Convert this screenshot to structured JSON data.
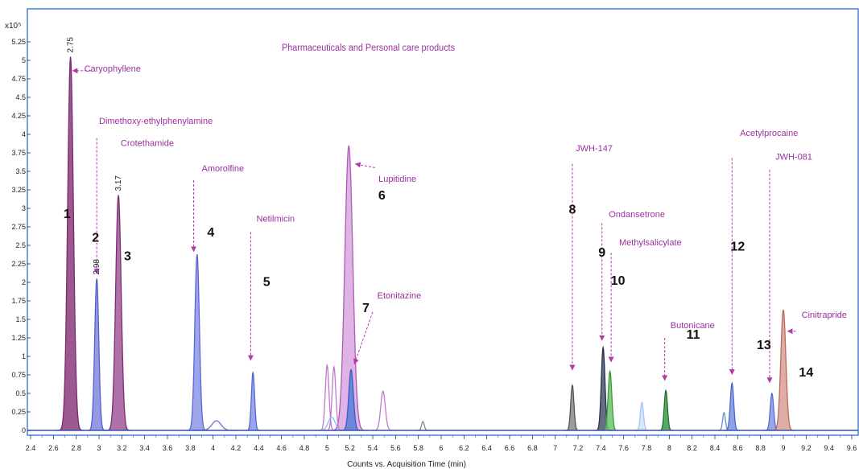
{
  "chart_data": {
    "type": "line",
    "title": "Pharmaceuticals and Personal care products",
    "xlabel": "Counts vs. Acquisition Time (min)",
    "ylabel": "",
    "y_multiplier": "x10⁵",
    "xlim": [
      2.4,
      9.6
    ],
    "ylim": [
      0,
      5.5
    ],
    "x_ticks": [
      "2.4",
      "2.6",
      "2.8",
      "3",
      "3.2",
      "3.4",
      "3.6",
      "3.8",
      "4",
      "4.2",
      "4.4",
      "4.6",
      "4.8",
      "5",
      "5.2",
      "5.4",
      "5.6",
      "5.8",
      "6",
      "6.2",
      "6.4",
      "6.6",
      "6.8",
      "7",
      "7.2",
      "7.4",
      "7.6",
      "7.8",
      "8",
      "8.2",
      "8.4",
      "8.6",
      "8.8",
      "9",
      "9.2",
      "9.4",
      "9.6"
    ],
    "y_ticks": [
      "0",
      "0.25",
      "0.5",
      "0.75",
      "1",
      "1.25",
      "1.5",
      "1.75",
      "2",
      "2.25",
      "2.5",
      "2.75",
      "3",
      "3.25",
      "3.5",
      "3.75",
      "4",
      "4.25",
      "4.5",
      "4.75",
      "5",
      "5.25"
    ],
    "grid": false,
    "colors": {
      "frame": "#4a7fd4",
      "label": "#9b2fa0",
      "number": "#111111",
      "arrow": "#b23aa8"
    },
    "peaks": [
      {
        "x": 2.75,
        "y": 5.05,
        "w": 0.025,
        "color": "#7a2a6e",
        "fill": "#8b3c7c"
      },
      {
        "x": 2.98,
        "y": 2.05,
        "w": 0.018,
        "color": "#5560c8",
        "fill": "#8088dd"
      },
      {
        "x": 3.17,
        "y": 3.18,
        "w": 0.024,
        "color": "#7e2c72",
        "fill": "#a0589a"
      },
      {
        "x": 3.86,
        "y": 2.38,
        "w": 0.02,
        "color": "#5a66d6",
        "fill": "#8c96e6"
      },
      {
        "x": 4.03,
        "y": 0.13,
        "w": 0.04,
        "color": "#6a72d8",
        "fill": "none"
      },
      {
        "x": 4.35,
        "y": 0.78,
        "w": 0.014,
        "color": "#5566d4",
        "fill": "#8a96e8"
      },
      {
        "x": 5.19,
        "y": 3.85,
        "w": 0.035,
        "color": "#b05bb8",
        "fill": "#d9a6df"
      },
      {
        "x": 5.21,
        "y": 0.82,
        "w": 0.02,
        "color": "#3a5ec8",
        "fill": "#5a7ed8"
      },
      {
        "x": 5.0,
        "y": 0.88,
        "w": 0.016,
        "color": "#c07acb",
        "fill": "none"
      },
      {
        "x": 5.06,
        "y": 0.86,
        "w": 0.016,
        "color": "#c07acb",
        "fill": "none"
      },
      {
        "x": 5.49,
        "y": 0.53,
        "w": 0.02,
        "color": "#c07acb",
        "fill": "none"
      },
      {
        "x": 5.04,
        "y": 0.18,
        "w": 0.03,
        "color": "#8ab8ee",
        "fill": "none"
      },
      {
        "x": 5.84,
        "y": 0.12,
        "w": 0.012,
        "color": "#888888",
        "fill": "none"
      },
      {
        "x": 7.15,
        "y": 0.61,
        "w": 0.014,
        "color": "#555555",
        "fill": "#8a8a8a"
      },
      {
        "x": 7.42,
        "y": 1.12,
        "w": 0.016,
        "color": "#2a3050",
        "fill": "#4c5470"
      },
      {
        "x": 7.48,
        "y": 0.8,
        "w": 0.016,
        "color": "#3a9a3a",
        "fill": "#6cc46c"
      },
      {
        "x": 7.76,
        "y": 0.38,
        "w": 0.014,
        "color": "#a8c8f0",
        "fill": "#cfe0f6"
      },
      {
        "x": 7.97,
        "y": 0.54,
        "w": 0.014,
        "color": "#1f6f2a",
        "fill": "#3c9a48"
      },
      {
        "x": 8.48,
        "y": 0.24,
        "w": 0.012,
        "color": "#6a8ad8",
        "fill": "none"
      },
      {
        "x": 8.55,
        "y": 0.64,
        "w": 0.015,
        "color": "#4a68d0",
        "fill": "#7a92e0"
      },
      {
        "x": 8.9,
        "y": 0.5,
        "w": 0.015,
        "color": "#5a6ad4",
        "fill": "#8a96e4"
      },
      {
        "x": 9.0,
        "y": 1.63,
        "w": 0.022,
        "color": "#b86a5a",
        "fill": "#d8a096"
      }
    ],
    "compounds": [
      {
        "name": "Caryophyllene",
        "lx": 2.87,
        "ly": 4.85
      },
      {
        "name": "Dimethoxy-ethylphenylamine",
        "lx": 3.0,
        "ly": 4.14
      },
      {
        "name": "Crotethamide",
        "lx": 3.19,
        "ly": 3.84
      },
      {
        "name": "Amorolfine",
        "lx": 3.9,
        "ly": 3.5
      },
      {
        "name": "Netilmicin",
        "lx": 4.38,
        "ly": 2.82
      },
      {
        "name": "Lupitidine",
        "lx": 5.45,
        "ly": 3.36
      },
      {
        "name": "Etonitazine",
        "lx": 5.44,
        "ly": 1.78
      },
      {
        "name": "JWH-147",
        "lx": 7.18,
        "ly": 3.77
      },
      {
        "name": "Ondansetrone",
        "lx": 7.47,
        "ly": 2.88
      },
      {
        "name": "Methylsalicylate",
        "lx": 7.56,
        "ly": 2.5
      },
      {
        "name": "Butonicane",
        "lx": 8.01,
        "ly": 1.38
      },
      {
        "name": "Acetylprocaine",
        "lx": 8.62,
        "ly": 3.98
      },
      {
        "name": "JWH-081",
        "lx": 8.93,
        "ly": 3.66
      },
      {
        "name": "Cinitrapride",
        "lx": 9.16,
        "ly": 1.52
      }
    ],
    "peak_labels": [
      {
        "text": "2.75",
        "x": 2.75,
        "y": 5.06
      },
      {
        "text": "2.98",
        "x": 2.98,
        "y": 2.06
      },
      {
        "text": "3.17",
        "x": 3.17,
        "y": 3.19
      }
    ],
    "arrows": [
      {
        "x1": 2.93,
        "y1": 4.86,
        "x2": 2.77,
        "y2": 4.86
      },
      {
        "x1": 2.98,
        "y1": 3.95,
        "x2": 2.98,
        "y2": 2.12
      },
      {
        "x1": 3.83,
        "y1": 3.38,
        "x2": 3.83,
        "y2": 2.42
      },
      {
        "x1": 4.33,
        "y1": 2.68,
        "x2": 4.33,
        "y2": 0.95
      },
      {
        "x1": 5.42,
        "y1": 3.55,
        "x2": 5.25,
        "y2": 3.6
      },
      {
        "x1": 5.4,
        "y1": 1.6,
        "x2": 5.24,
        "y2": 0.9
      },
      {
        "x1": 7.15,
        "y1": 3.6,
        "x2": 7.15,
        "y2": 0.82
      },
      {
        "x1": 7.41,
        "y1": 2.8,
        "x2": 7.41,
        "y2": 1.22
      },
      {
        "x1": 7.49,
        "y1": 2.4,
        "x2": 7.49,
        "y2": 0.93
      },
      {
        "x1": 7.96,
        "y1": 1.25,
        "x2": 7.96,
        "y2": 0.68
      },
      {
        "x1": 8.55,
        "y1": 3.68,
        "x2": 8.55,
        "y2": 0.76
      },
      {
        "x1": 8.88,
        "y1": 3.52,
        "x2": 8.88,
        "y2": 0.65
      },
      {
        "x1": 9.11,
        "y1": 1.34,
        "x2": 9.04,
        "y2": 1.34
      }
    ],
    "numbers": [
      {
        "text": "1",
        "x": 2.72,
        "y": 2.87
      },
      {
        "text": "2",
        "x": 2.97,
        "y": 2.55
      },
      {
        "text": "3",
        "x": 3.25,
        "y": 2.3
      },
      {
        "text": "4",
        "x": 3.98,
        "y": 2.62
      },
      {
        "text": "5",
        "x": 4.47,
        "y": 1.95
      },
      {
        "text": "6",
        "x": 5.48,
        "y": 3.12
      },
      {
        "text": "7",
        "x": 5.34,
        "y": 1.6
      },
      {
        "text": "8",
        "x": 7.15,
        "y": 2.93
      },
      {
        "text": "9",
        "x": 7.41,
        "y": 2.35
      },
      {
        "text": "10",
        "x": 7.55,
        "y": 1.97
      },
      {
        "text": "11",
        "x": 8.21,
        "y": 1.24
      },
      {
        "text": "12",
        "x": 8.6,
        "y": 2.43
      },
      {
        "text": "13",
        "x": 8.83,
        "y": 1.1
      },
      {
        "text": "14",
        "x": 9.2,
        "y": 0.73
      }
    ]
  }
}
